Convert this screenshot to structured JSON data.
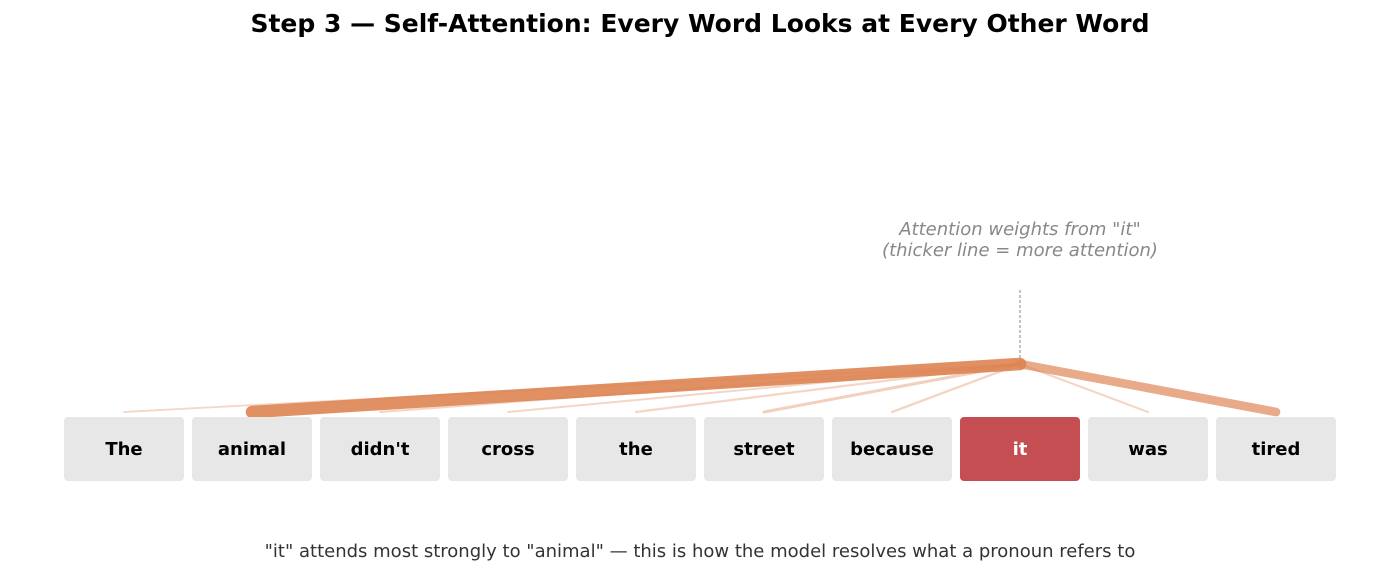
{
  "title": "Step 3 — Self-Attention: Every Word Looks at Every Other Word",
  "annotation": {
    "line1": "Attention weights from \"it\"",
    "line2": "(thicker line = more attention)"
  },
  "tokens": [
    "The",
    "animal",
    "didn't",
    "cross",
    "the",
    "street",
    "because",
    "it",
    "was",
    "tired"
  ],
  "focus_index": 7,
  "attention_weights": [
    0.03,
    0.85,
    0.04,
    0.04,
    0.05,
    0.12,
    0.06,
    null,
    0.05,
    0.55
  ],
  "caption": "\"it\" attends most strongly to \"animal\" — this is how the model resolves what a pronoun refers to",
  "colors": {
    "token_bg": "#e7e7e7",
    "focus_bg": "#c44e52",
    "attention_line": "#dd8452",
    "annotation_text": "#888888",
    "pointer": "#888888"
  }
}
